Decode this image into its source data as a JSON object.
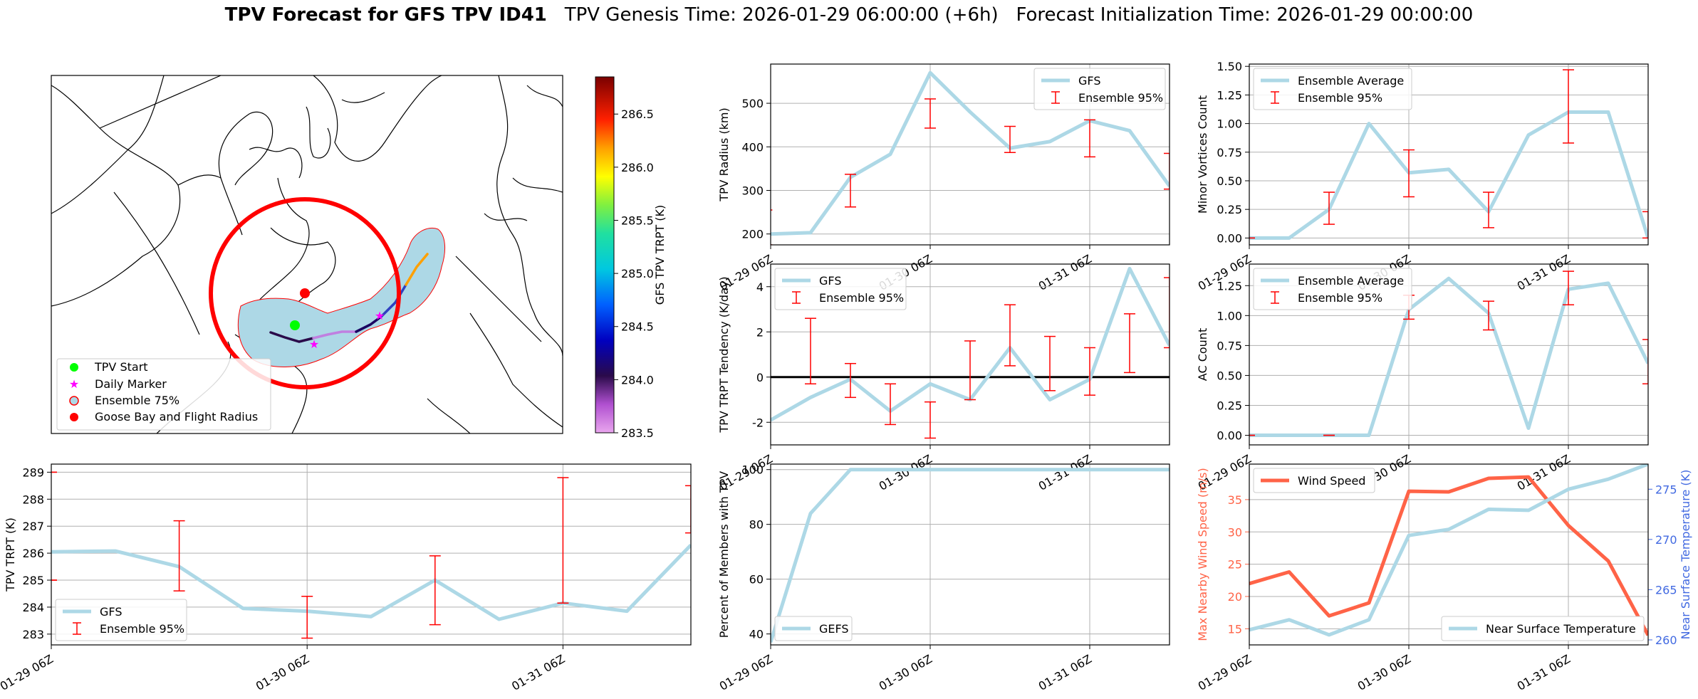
{
  "title": {
    "bold": "TPV Forecast for GFS TPV ID41",
    "genesis": "TPV Genesis Time: 2026-01-29 06:00:00 (+6h)",
    "init": "Forecast Initialization Time: 2026-01-29 00:00:00"
  },
  "colors": {
    "gfs_line": "#add8e6",
    "ensemble_err": "#ff0000",
    "wind": "#ff6347",
    "temp_axis": "#4169e1",
    "plume": "#add8e6",
    "radius_ring": "#ff0000",
    "start": "#00ff00",
    "daily": "#ff00ff"
  },
  "x_tick_labels": [
    "01-29 06Z",
    "01-30 06Z",
    "01-31 06Z"
  ],
  "map": {
    "legend": [
      "TPV Start",
      "Daily Marker",
      "Ensemble 75%",
      "Goose Bay and Flight Radius"
    ],
    "colorbar": {
      "label": "GFS TPV TRPT (K)",
      "ticks": [
        "283.5",
        "284.0",
        "284.5",
        "285.0",
        "285.5",
        "286.0",
        "286.5"
      ],
      "range": [
        283.5,
        286.85
      ]
    }
  },
  "chart_data": [
    {
      "id": "radius",
      "type": "line",
      "ylabel": "TPV Radius (km)",
      "ylim": [
        175,
        590
      ],
      "yticks": [
        200,
        300,
        400,
        500
      ],
      "x": [
        0,
        1,
        2,
        3,
        4,
        5,
        6,
        7,
        8,
        9,
        10
      ],
      "series": [
        {
          "name": "GFS",
          "values": [
            200,
            203,
            330,
            383,
            570,
            480,
            397,
            412,
            460,
            437,
            310
          ]
        }
      ],
      "errorbars": {
        "name": "Ensemble 95%",
        "points": [
          {
            "x": -0.1,
            "lo": 175,
            "hi": 255
          },
          {
            "x": 2,
            "lo": 262,
            "hi": 337
          },
          {
            "x": 4,
            "lo": 443,
            "hi": 510
          },
          {
            "x": 6,
            "lo": 387,
            "hi": 447
          },
          {
            "x": 8,
            "lo": 377,
            "hi": 462
          },
          {
            "x": 10,
            "lo": 303,
            "hi": 385
          }
        ]
      },
      "legend": [
        "GFS",
        "Ensemble 95%"
      ]
    },
    {
      "id": "minor",
      "type": "line",
      "ylabel": "Minor Vortices Count",
      "ylim": [
        -0.06,
        1.52
      ],
      "yticks": [
        0.0,
        0.25,
        0.5,
        0.75,
        1.0,
        1.25,
        1.5
      ],
      "ytick_labels": [
        "0.00",
        "0.25",
        "0.50",
        "0.75",
        "1.00",
        "1.25",
        "1.50"
      ],
      "x": [
        0,
        1,
        2,
        3,
        4,
        5,
        6,
        7,
        8,
        9,
        10
      ],
      "series": [
        {
          "name": "Ensemble Average",
          "values": [
            0,
            0,
            0.25,
            1.0,
            0.57,
            0.6,
            0.23,
            0.9,
            1.1,
            1.1,
            0
          ]
        }
      ],
      "errorbars": {
        "name": "Ensemble 95%",
        "points": [
          {
            "x": 0,
            "lo": 0,
            "hi": 0
          },
          {
            "x": 2,
            "lo": 0.12,
            "hi": 0.4
          },
          {
            "x": 4,
            "lo": 0.36,
            "hi": 0.77
          },
          {
            "x": 6,
            "lo": 0.09,
            "hi": 0.4
          },
          {
            "x": 8,
            "lo": 0.83,
            "hi": 1.47
          },
          {
            "x": 10,
            "lo": 0,
            "hi": 0.23
          }
        ]
      },
      "legend": [
        "Ensemble Average",
        "Ensemble 95%"
      ]
    },
    {
      "id": "tendency",
      "type": "line",
      "ylabel": "TPV TRPT Tendency (K/day)",
      "ylim": [
        -3.0,
        5.0
      ],
      "yticks": [
        -2,
        0,
        2,
        4
      ],
      "zero_line": true,
      "x": [
        0,
        1,
        2,
        3,
        4,
        5,
        6,
        7,
        8,
        9,
        10
      ],
      "series": [
        {
          "name": "GFS",
          "values": [
            -1.9,
            -0.9,
            -0.1,
            -1.5,
            -0.3,
            -1.0,
            1.3,
            -1.0,
            -0.1,
            4.8,
            1.4
          ]
        }
      ],
      "errorbars": {
        "name": "Ensemble 95%",
        "points": [
          {
            "x": 1,
            "lo": -0.3,
            "hi": 2.6
          },
          {
            "x": 2,
            "lo": -0.9,
            "hi": 0.6
          },
          {
            "x": 3,
            "lo": -2.1,
            "hi": -0.3
          },
          {
            "x": 4,
            "lo": -2.7,
            "hi": -1.1
          },
          {
            "x": 5,
            "lo": -1.0,
            "hi": 1.6
          },
          {
            "x": 6,
            "lo": 0.5,
            "hi": 3.2
          },
          {
            "x": 7,
            "lo": -0.6,
            "hi": 1.8
          },
          {
            "x": 8,
            "lo": -0.8,
            "hi": 1.3
          },
          {
            "x": 9,
            "lo": 0.2,
            "hi": 2.8
          },
          {
            "x": 10,
            "lo": 1.3,
            "hi": 4.4
          }
        ]
      },
      "legend": [
        "GFS",
        "Ensemble 95%"
      ]
    },
    {
      "id": "ac",
      "type": "line",
      "ylabel": "AC Count",
      "ylim": [
        -0.08,
        1.43
      ],
      "yticks": [
        0.0,
        0.25,
        0.5,
        0.75,
        1.0,
        1.25
      ],
      "ytick_labels": [
        "0.00",
        "0.25",
        "0.50",
        "0.75",
        "1.00",
        "1.25"
      ],
      "x": [
        0,
        1,
        2,
        3,
        4,
        5,
        6,
        7,
        8,
        9,
        10
      ],
      "series": [
        {
          "name": "Ensemble Average",
          "values": [
            0,
            0,
            0,
            0,
            1.05,
            1.31,
            1.02,
            0.06,
            1.22,
            1.27,
            0.6
          ]
        }
      ],
      "errorbars": {
        "name": "Ensemble 95%",
        "points": [
          {
            "x": 0,
            "lo": 0,
            "hi": 0
          },
          {
            "x": 2,
            "lo": 0,
            "hi": 0
          },
          {
            "x": 4,
            "lo": 0.97,
            "hi": 1.17
          },
          {
            "x": 6,
            "lo": 0.88,
            "hi": 1.12
          },
          {
            "x": 8,
            "lo": 1.09,
            "hi": 1.37
          },
          {
            "x": 10,
            "lo": 0.43,
            "hi": 0.8
          }
        ]
      },
      "legend": [
        "Ensemble Average",
        "Ensemble 95%"
      ]
    },
    {
      "id": "trpt",
      "type": "line",
      "ylabel": "TPV TRPT (K)",
      "ylim": [
        282.6,
        289.3
      ],
      "yticks": [
        283,
        284,
        285,
        286,
        287,
        288,
        289
      ],
      "x": [
        0,
        1,
        2,
        3,
        4,
        5,
        6,
        7,
        8,
        9,
        10
      ],
      "series": [
        {
          "name": "GFS",
          "values": [
            286.05,
            286.08,
            285.5,
            283.95,
            283.85,
            283.65,
            285.0,
            283.55,
            284.15,
            283.85,
            286.3
          ]
        }
      ],
      "errorbars": {
        "name": "Ensemble 95%",
        "points": [
          {
            "x": 0,
            "lo": 285.0,
            "hi": 285.0
          },
          {
            "x": 0,
            "lo": 289.0,
            "hi": 289.0
          },
          {
            "x": 2,
            "lo": 284.6,
            "hi": 287.2
          },
          {
            "x": 4,
            "lo": 282.85,
            "hi": 284.4
          },
          {
            "x": 6,
            "lo": 283.35,
            "hi": 285.9
          },
          {
            "x": 8,
            "lo": 284.15,
            "hi": 288.8
          },
          {
            "x": 10,
            "lo": 286.75,
            "hi": 288.5
          }
        ]
      },
      "legend": [
        "GFS",
        "Ensemble 95%"
      ]
    },
    {
      "id": "percent",
      "type": "line",
      "ylabel": "Percent of Members with TPV",
      "ylim": [
        36,
        102
      ],
      "yticks": [
        40,
        60,
        80,
        100
      ],
      "x": [
        0,
        1,
        2,
        3,
        4,
        5,
        6,
        7,
        8,
        9,
        10
      ],
      "series": [
        {
          "name": "GEFS",
          "values": [
            37,
            84,
            100,
            100,
            100,
            100,
            100,
            100,
            100,
            100,
            100
          ]
        }
      ],
      "legend": [
        "GEFS"
      ]
    },
    {
      "id": "wind",
      "type": "line",
      "ylabel": "Max Nearby Wind Speed (m/s)",
      "ylim": [
        12.5,
        40.5
      ],
      "yticks": [
        15,
        20,
        25,
        30,
        35
      ],
      "ylabel2": "Near Surface Temperature (K)",
      "ylim2": [
        259.5,
        277.5
      ],
      "yticks2": [
        260,
        265,
        270,
        275
      ],
      "x": [
        0,
        1,
        2,
        3,
        4,
        5,
        6,
        7,
        8,
        9,
        10
      ],
      "series": [
        {
          "name": "Wind Speed",
          "axis": "left",
          "values": [
            22,
            23.8,
            17,
            19,
            36.3,
            36.2,
            38.3,
            38.5,
            31,
            25.5,
            14
          ]
        },
        {
          "name": "Near Surface Temperature",
          "axis": "right",
          "values": [
            261,
            262,
            260.5,
            262,
            270.4,
            271,
            273,
            272.9,
            275,
            276,
            277.5
          ]
        }
      ],
      "legend": [
        "Wind Speed",
        "Near Surface Temperature"
      ]
    }
  ]
}
